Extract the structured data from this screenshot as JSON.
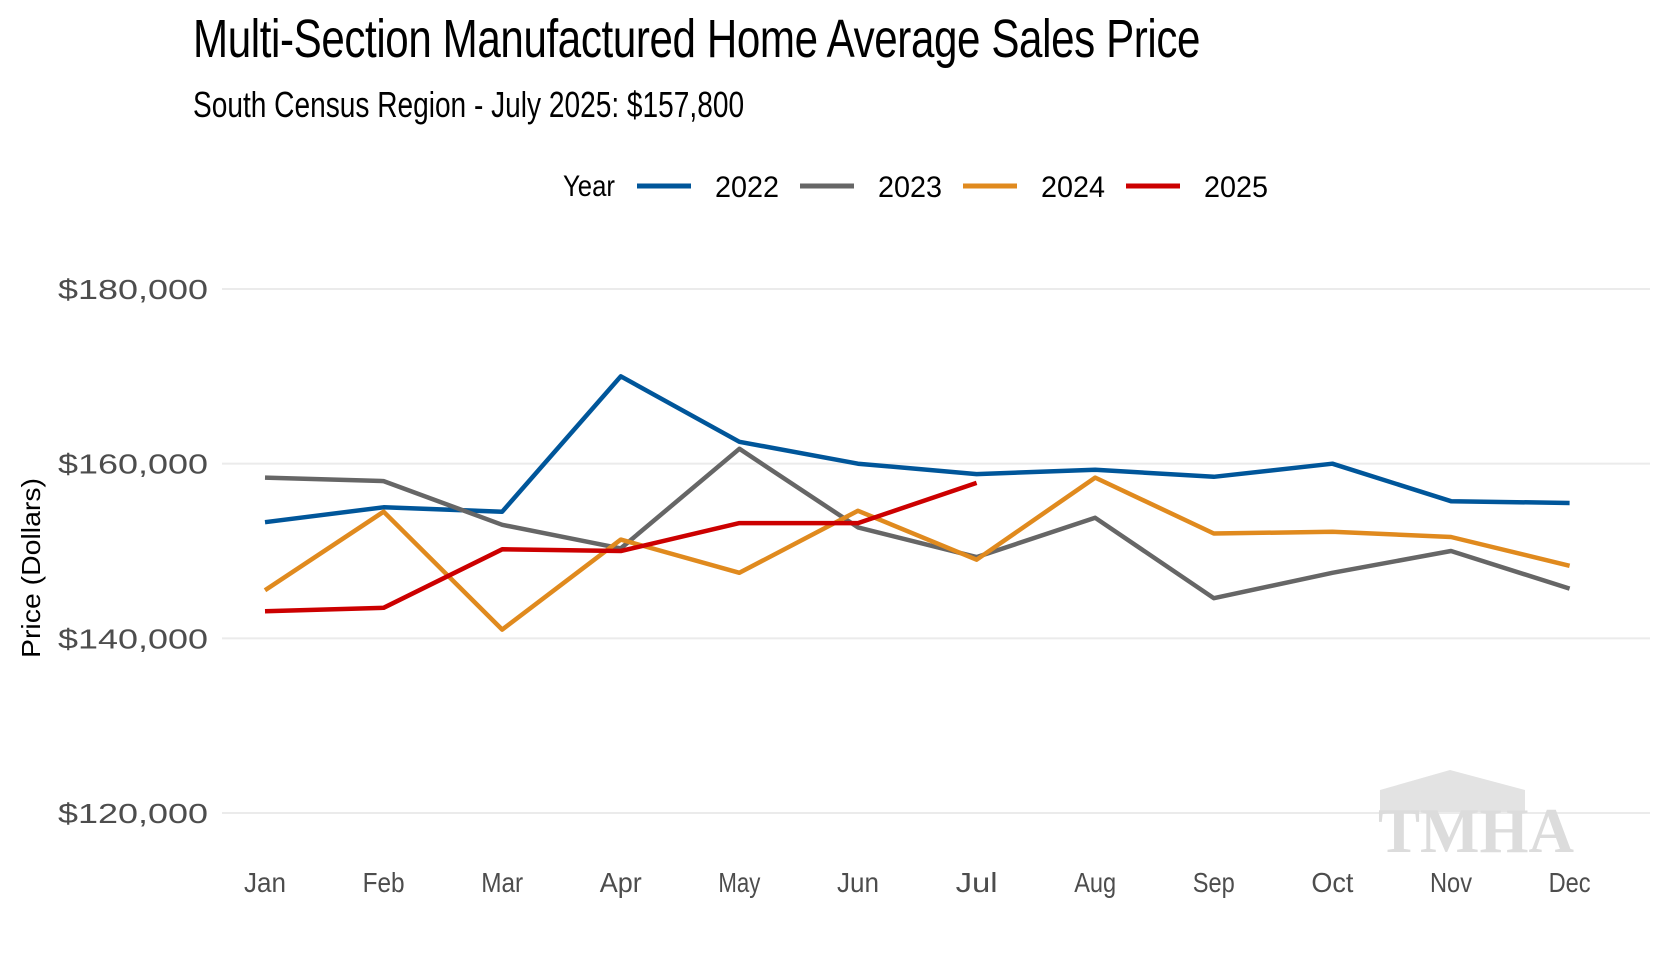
{
  "chart_data": {
    "type": "line",
    "title": "Multi-Section Manufactured Home Average Sales Price",
    "subtitle": "South Census Region - July 2025: $157,800",
    "xlabel": "",
    "ylabel": "Price (Dollars)",
    "categories": [
      "Jan",
      "Feb",
      "Mar",
      "Apr",
      "May",
      "Jun",
      "Jul",
      "Aug",
      "Sep",
      "Oct",
      "Nov",
      "Dec"
    ],
    "ylim": [
      115000,
      190000
    ],
    "yticks": [
      120000,
      140000,
      160000,
      180000
    ],
    "ytick_labels": [
      "$120,000",
      "$140,000",
      "$160,000",
      "$180,000"
    ],
    "grid": true,
    "legend": {
      "title": "Year",
      "position": "top"
    },
    "series": [
      {
        "name": "2022",
        "color": "#00569a",
        "values": [
          153300,
          155000,
          154500,
          170000,
          162500,
          160000,
          158800,
          159300,
          158500,
          160000,
          155700,
          155500
        ]
      },
      {
        "name": "2023",
        "color": "#666666",
        "values": [
          158400,
          158000,
          153000,
          150300,
          161700,
          152700,
          149300,
          153800,
          144600,
          147500,
          150000,
          145700
        ]
      },
      {
        "name": "2024",
        "color": "#e08a1e",
        "values": [
          145500,
          154500,
          141000,
          151300,
          147500,
          154600,
          149000,
          158400,
          152000,
          152200,
          151600,
          148300
        ]
      },
      {
        "name": "2025",
        "color": "#cc0000",
        "values": [
          143100,
          143500,
          150200,
          150000,
          153200,
          153200,
          157800
        ]
      }
    ],
    "watermark": "TMHA"
  }
}
